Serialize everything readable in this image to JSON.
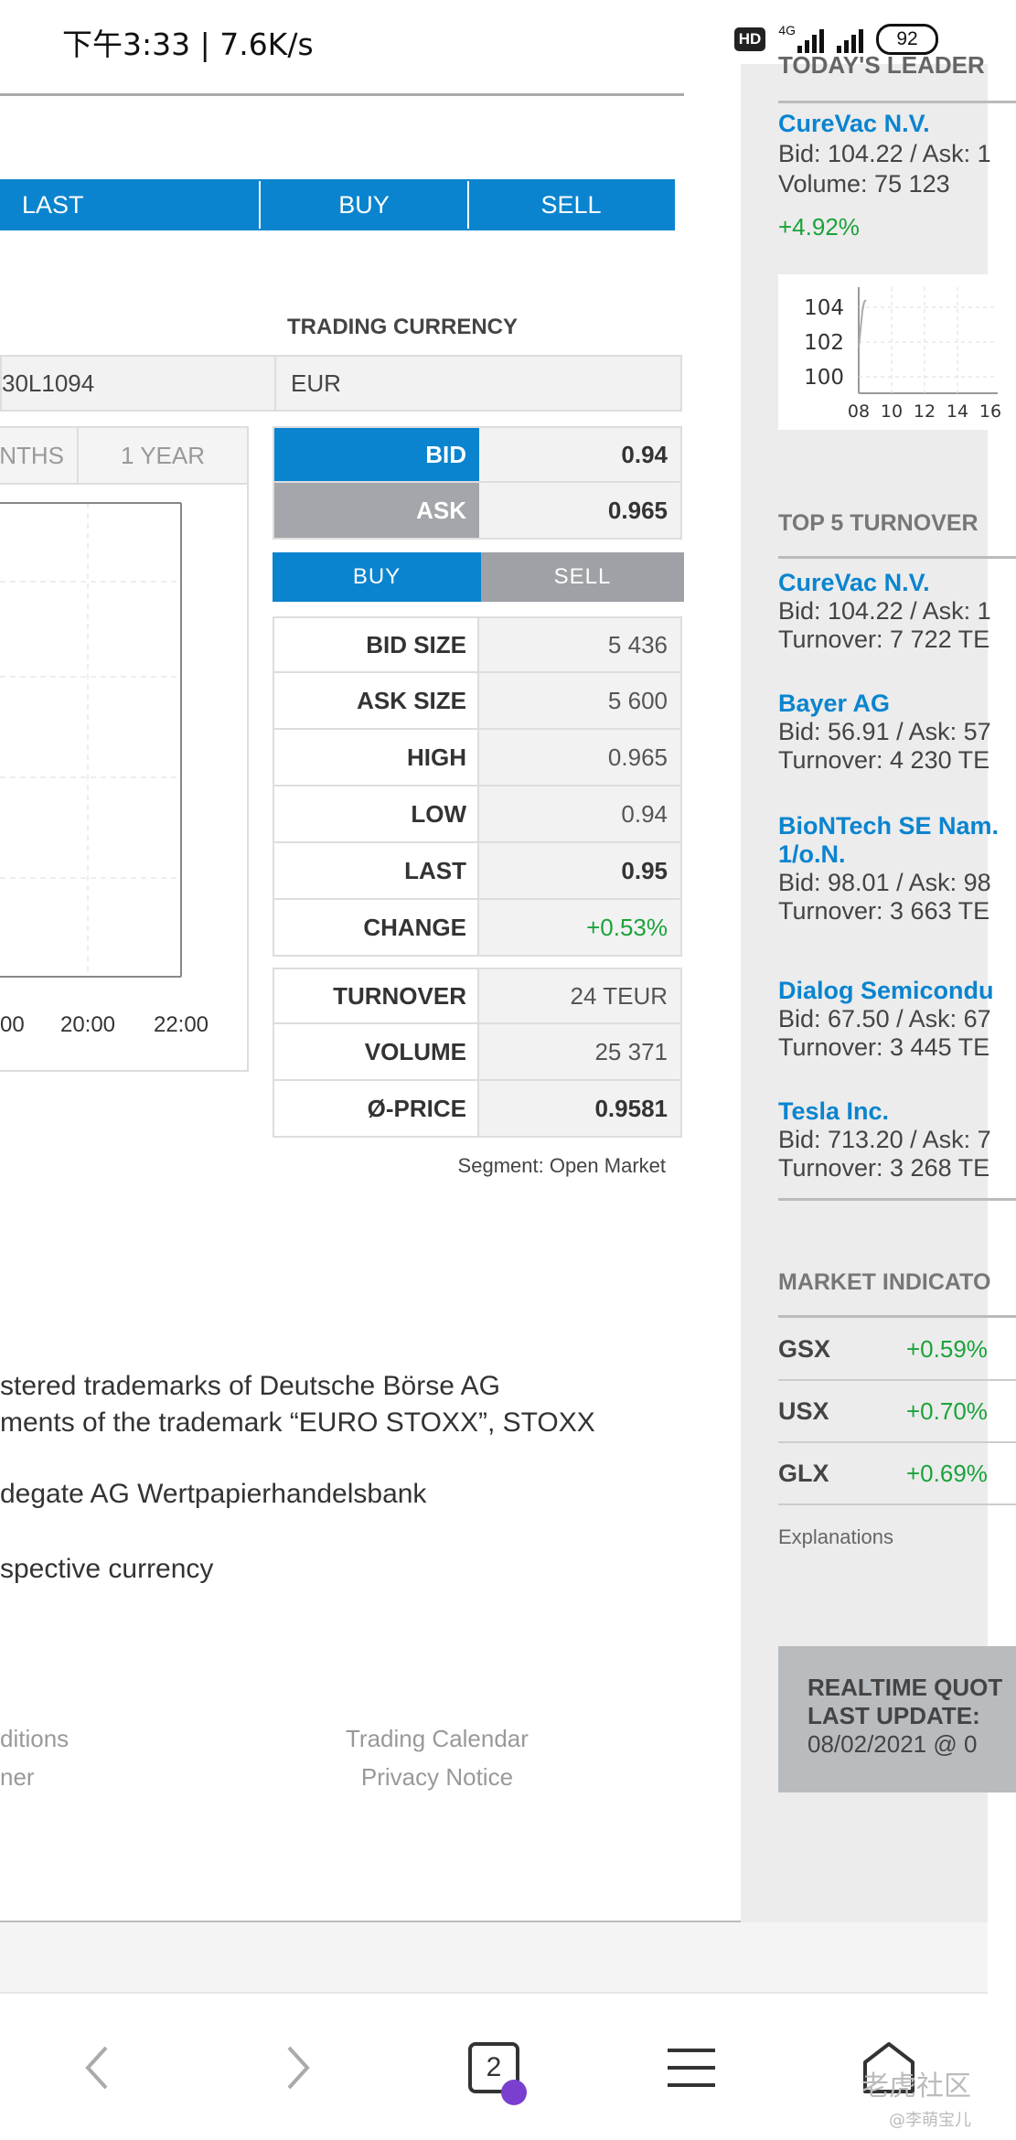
{
  "status": {
    "time": "下午3:33 | 7.6K/s",
    "hd": "HD",
    "network": "4G",
    "battery": "92"
  },
  "tabs": {
    "last": "LAST",
    "buy": "BUY",
    "sell": "SELL"
  },
  "instrument": {
    "trading_currency_label": "TRADING CURRENCY",
    "isin": "30L1094",
    "currency": "EUR"
  },
  "chart": {
    "periods": [
      "NTHS",
      "1 YEAR"
    ],
    "x_ticks": [
      "00",
      "20:00",
      "22:00"
    ]
  },
  "quote": {
    "bid_label": "BID",
    "bid": "0.94",
    "ask_label": "ASK",
    "ask": "0.965",
    "buy_label": "BUY",
    "sell_label": "SELL",
    "stats": [
      {
        "label": "BID SIZE",
        "value": "5 436"
      },
      {
        "label": "ASK SIZE",
        "value": "5 600"
      },
      {
        "label": "HIGH",
        "value": "0.965"
      },
      {
        "label": "LOW",
        "value": "0.94"
      },
      {
        "label": "LAST",
        "value": "0.95"
      },
      {
        "label": "CHANGE",
        "value": "+0.53%"
      }
    ],
    "stats2": [
      {
        "label": "TURNOVER",
        "value": "24 TEUR"
      },
      {
        "label": "VOLUME",
        "value": "25 371"
      },
      {
        "label": "Ø-PRICE",
        "value": "0.9581"
      }
    ],
    "segment": "Segment: Open Market"
  },
  "disclaimer": {
    "line1": "stered trademarks of Deutsche Börse AG",
    "line2": "ments of the trademark “EURO STOXX”, STOXX",
    "line3": "degate AG Wertpapierhandelsbank",
    "line4": "spective currency"
  },
  "footer": {
    "left1": "ditions",
    "left2": "ner",
    "right1": "Trading Calendar",
    "right2": "Privacy Notice"
  },
  "sidebar": {
    "leader_heading": "TODAY'S LEADER",
    "leader": {
      "name": "CureVac N.V.",
      "bidask": "Bid: 104.22 / Ask: 1",
      "volume": "Volume: 75 123",
      "change": "+4.92%"
    },
    "mini_chart": {
      "y_ticks": [
        "104",
        "102",
        "100"
      ],
      "x_ticks": [
        "08",
        "10",
        "12",
        "14",
        "16"
      ]
    },
    "turnover_heading": "TOP 5 TURNOVER",
    "turnover": [
      {
        "name": "CureVac N.V.",
        "bidask": "Bid: 104.22 / Ask: 1",
        "turnover": "Turnover: 7 722 TE"
      },
      {
        "name": "Bayer AG",
        "bidask": "Bid: 56.91 / Ask: 57",
        "turnover": "Turnover: 4 230 TE"
      },
      {
        "name": "BioNTech SE Nam.",
        "name2": "1/o.N.",
        "bidask": "Bid: 98.01 / Ask: 98",
        "turnover": "Turnover: 3 663 TE"
      },
      {
        "name": "Dialog Semicondu",
        "bidask": "Bid: 67.50 / Ask: 67",
        "turnover": "Turnover: 3 445 TE"
      },
      {
        "name": "Tesla Inc.",
        "bidask": "Bid: 713.20 / Ask: 7",
        "turnover": "Turnover: 3 268 TE"
      }
    ],
    "indicators_heading": "MARKET INDICATO",
    "indicators": [
      {
        "name": "GSX",
        "value": "+0.59%"
      },
      {
        "name": "USX",
        "value": "+0.70%"
      },
      {
        "name": "GLX",
        "value": "+0.69%"
      }
    ],
    "explanations": "Explanations",
    "realtime": {
      "line1": "REALTIME QUOT",
      "line2": "LAST UPDATE: ",
      "line3": "08/02/2021 @ 0"
    }
  },
  "navbar": {
    "tab_count": "2"
  },
  "watermark": {
    "main": "老虎社区",
    "sub": "@李萌宝儿"
  }
}
